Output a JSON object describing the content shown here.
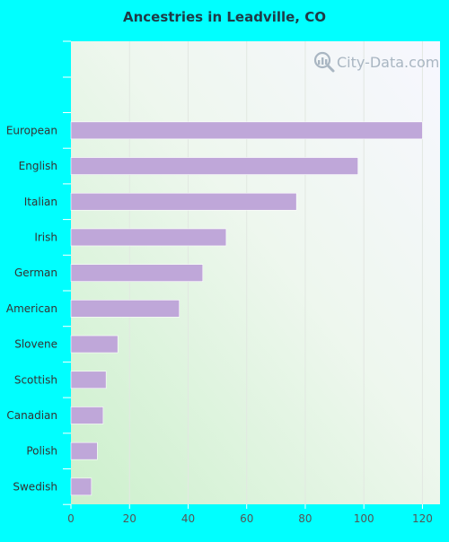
{
  "chart_data": {
    "type": "bar",
    "orientation": "horizontal",
    "title": "Ancestries in Leadville, CO",
    "categories": [
      "European",
      "English",
      "Italian",
      "Irish",
      "German",
      "American",
      "Slovene",
      "Scottish",
      "Canadian",
      "Polish",
      "Swedish"
    ],
    "values": [
      120,
      98,
      77,
      53,
      45,
      37,
      16,
      12,
      11,
      9,
      7
    ],
    "xlim": [
      0,
      126
    ],
    "xticks": [
      0,
      20,
      40,
      60,
      80,
      100,
      120
    ],
    "xlabel": "",
    "ylabel": "",
    "grid": true,
    "bar_color": "#bfa7d9",
    "legend": "none"
  },
  "watermark": {
    "text": "City-Data.com",
    "icon": "magnifier-chart-icon"
  }
}
